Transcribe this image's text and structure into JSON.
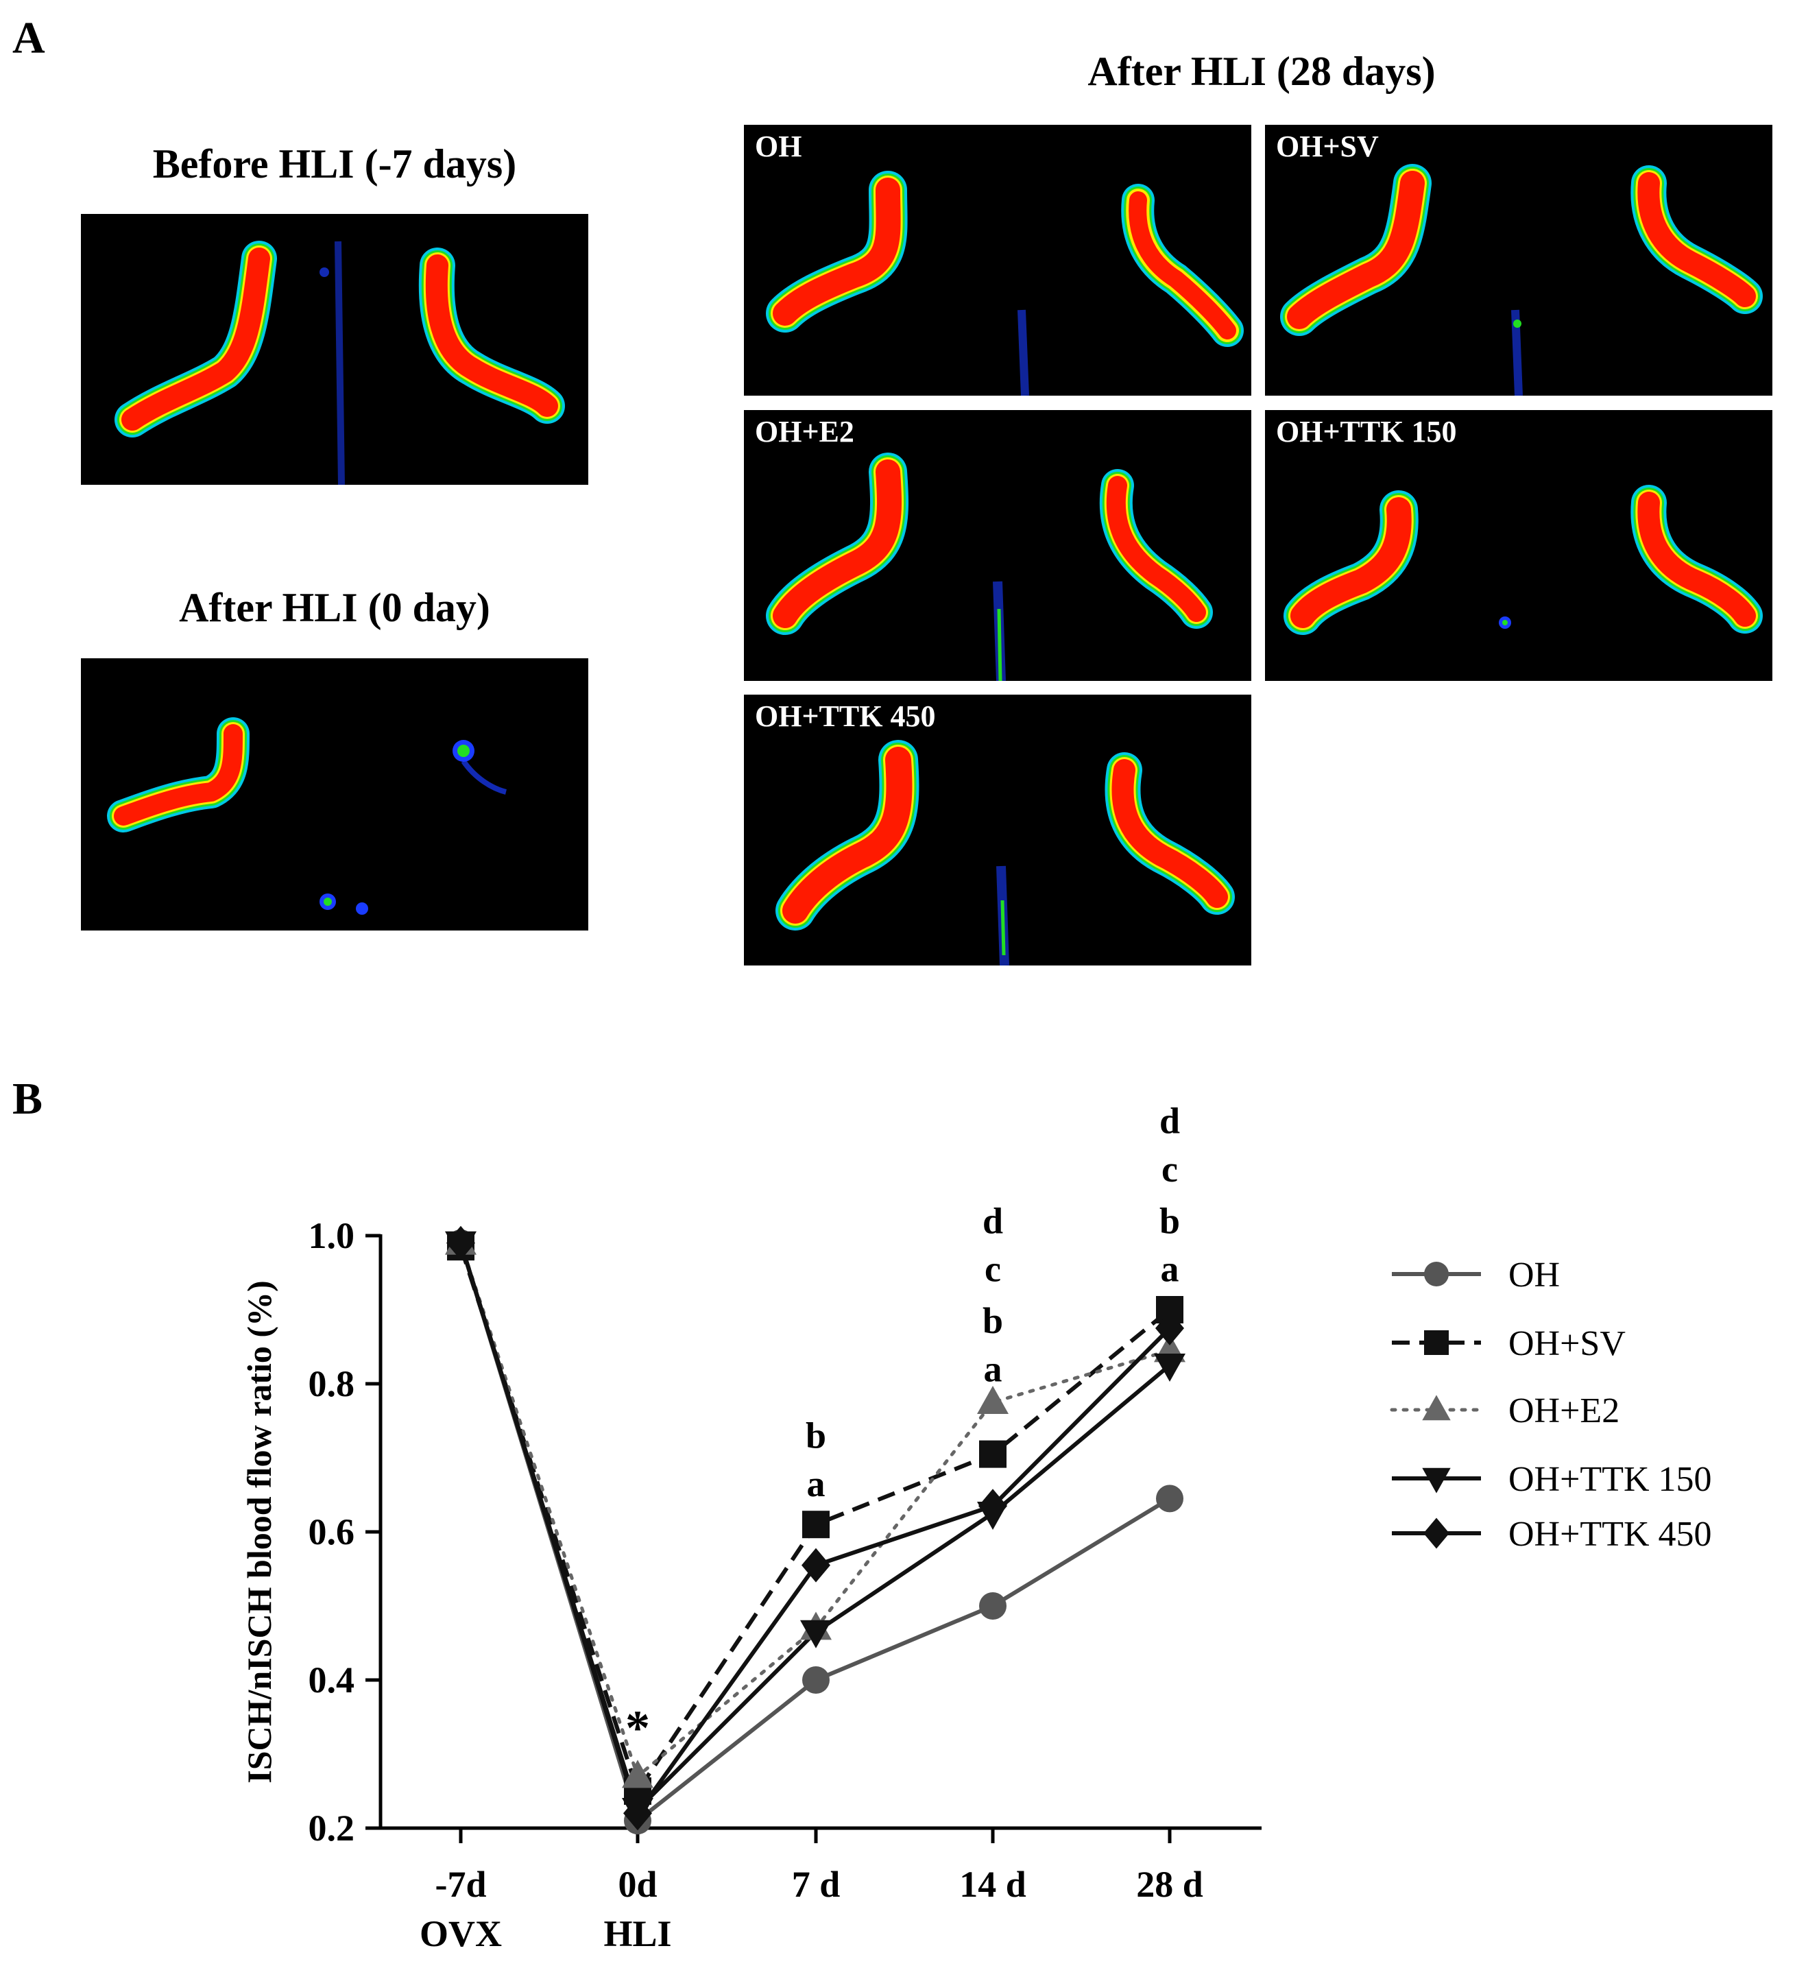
{
  "panel_a": {
    "letter": "A",
    "before_title": "Before HLI (-7 days)",
    "after0_title": "After HLI (0 day)",
    "after28_title": "After HLI (28 days)",
    "images": [
      {
        "label": "OH"
      },
      {
        "label": "OH+SV"
      },
      {
        "label": "OH+E2"
      },
      {
        "label": "OH+TTK 150"
      },
      {
        "label": "OH+TTK 450"
      }
    ]
  },
  "panel_b": {
    "letter": "B"
  },
  "colors": {
    "red": "#ff1a00",
    "yellow": "#ffe800",
    "green": "#22dd22",
    "cyan": "#00c8e6",
    "blue": "#1a3cff",
    "background": "#000000"
  },
  "chart_data": {
    "type": "line",
    "ylabel": "ISCH/nISCH blood flow ratio (%)",
    "ylim": [
      0.2,
      1.0
    ],
    "yticks": [
      "0.2",
      "0.4",
      "0.6",
      "0.8",
      "1.0"
    ],
    "x_labels": [
      {
        "line1": "-7d",
        "line2": "OVX"
      },
      {
        "line1": "0d",
        "line2": "HLI"
      },
      {
        "line1": "7 d",
        "line2": ""
      },
      {
        "line1": "14 d",
        "line2": ""
      },
      {
        "line1": "28 d",
        "line2": ""
      }
    ],
    "series": [
      {
        "name": "OH",
        "marker": "circle",
        "dash": "solid",
        "color": "#555555",
        "values": [
          0.99,
          0.21,
          0.4,
          0.5,
          0.645
        ]
      },
      {
        "name": "OH+SV",
        "marker": "square",
        "dash": "dashed",
        "color": "#111111",
        "values": [
          0.985,
          0.25,
          0.61,
          0.705,
          0.9
        ]
      },
      {
        "name": "OH+E2",
        "marker": "triangle-up",
        "dash": "dotted",
        "color": "#666666",
        "values": [
          0.99,
          0.27,
          0.47,
          0.775,
          0.845
        ]
      },
      {
        "name": "OH+TTK 150",
        "marker": "triangle-down",
        "dash": "solid",
        "color": "#111111",
        "values": [
          0.99,
          0.225,
          0.465,
          0.625,
          0.825
        ]
      },
      {
        "name": "OH+TTK 450",
        "marker": "diamond",
        "dash": "solid",
        "color": "#111111",
        "values": [
          0.99,
          0.22,
          0.555,
          0.635,
          0.875
        ]
      }
    ],
    "annotations": [
      {
        "x_index": 1,
        "y": 0.35,
        "text": "*"
      },
      {
        "x_index": 2,
        "text": "b",
        "y": 0.73
      },
      {
        "x_index": 2,
        "text": "a",
        "y": 0.665
      },
      {
        "x_index": 3,
        "text": "d",
        "y": 1.02
      },
      {
        "x_index": 3,
        "text": "c",
        "y": 0.955
      },
      {
        "x_index": 3,
        "text": "b",
        "y": 0.885
      },
      {
        "x_index": 3,
        "text": "a",
        "y": 0.82
      },
      {
        "x_index": 4,
        "text": "d",
        "y": 1.155
      },
      {
        "x_index": 4,
        "text": "c",
        "y": 1.09
      },
      {
        "x_index": 4,
        "text": "b",
        "y": 1.02
      },
      {
        "x_index": 4,
        "text": "a",
        "y": 0.955
      }
    ]
  }
}
